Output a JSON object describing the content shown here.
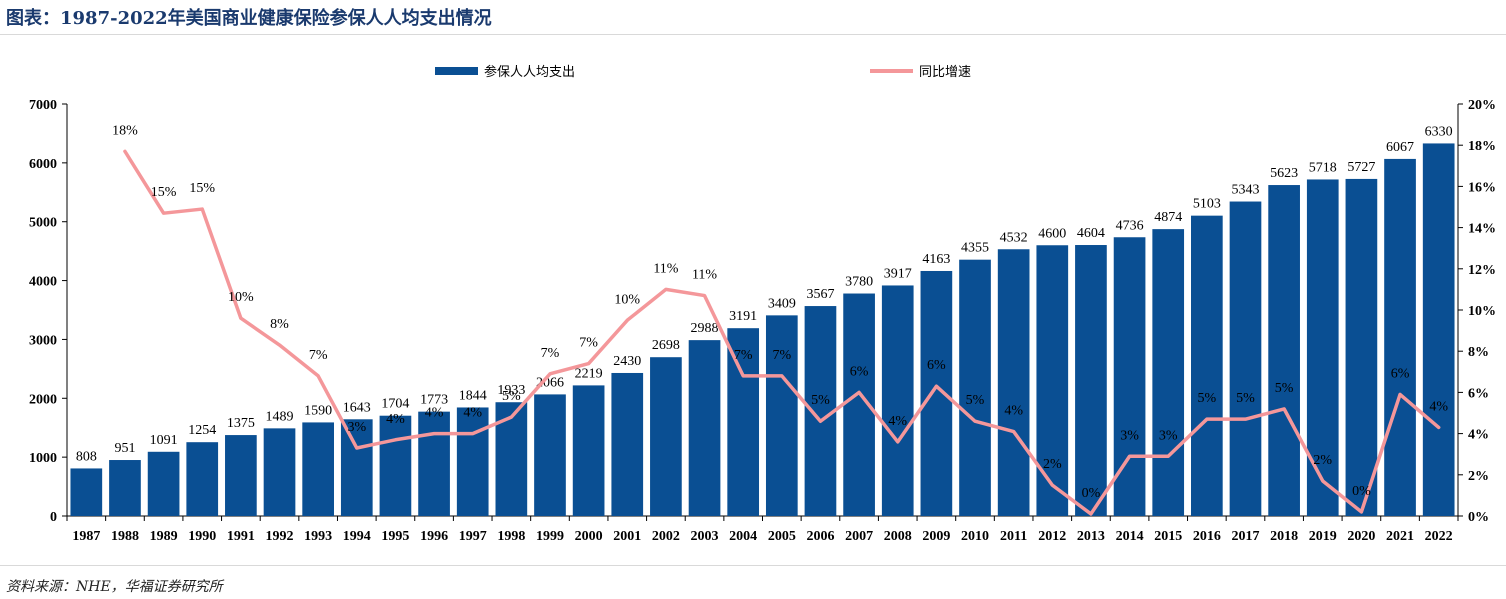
{
  "title": "图表：1987-2022年美国商业健康保险参保人人均支出情况",
  "source": "资料来源：NHE，华福证券研究所",
  "colors": {
    "bar": "#0a4f93",
    "line": "#f4979a",
    "title": "#1a3a6e"
  },
  "chart_data": {
    "type": "bar+line",
    "categories": [
      "1987",
      "1988",
      "1989",
      "1990",
      "1991",
      "1992",
      "1993",
      "1994",
      "1995",
      "1996",
      "1997",
      "1998",
      "1999",
      "2000",
      "2001",
      "2002",
      "2003",
      "2004",
      "2005",
      "2006",
      "2007",
      "2008",
      "2009",
      "2010",
      "2011",
      "2012",
      "2013",
      "2014",
      "2015",
      "2016",
      "2017",
      "2018",
      "2019",
      "2020",
      "2021",
      "2022"
    ],
    "series": [
      {
        "name": "参保人人均支出",
        "type": "bar",
        "axis": "left",
        "values": [
          808,
          951,
          1091,
          1254,
          1375,
          1489,
          1590,
          1643,
          1704,
          1773,
          1844,
          1933,
          2066,
          2219,
          2430,
          2698,
          2988,
          3191,
          3409,
          3567,
          3780,
          3917,
          4163,
          4355,
          4532,
          4600,
          4604,
          4736,
          4874,
          5103,
          5343,
          5623,
          5718,
          5727,
          6067,
          6330
        ],
        "labels": [
          "808",
          "951",
          "1091",
          "1254",
          "1375",
          "1489",
          "1590",
          "1643",
          "1704",
          "1773",
          "1844",
          "1933",
          "2066",
          "2219",
          "2430",
          "2698",
          "2988",
          "3191",
          "3409",
          "3567",
          "3780",
          "3917",
          "4163",
          "4355",
          "4532",
          "4600",
          "4604",
          "4736",
          "4874",
          "5103",
          "5343",
          "5623",
          "5718",
          "5727",
          "6067",
          "6330"
        ]
      },
      {
        "name": "同比增速",
        "type": "line",
        "axis": "right",
        "values": [
          null,
          17.7,
          14.7,
          14.9,
          9.6,
          8.3,
          6.8,
          3.3,
          3.7,
          4.0,
          4.0,
          4.8,
          6.9,
          7.4,
          9.5,
          11.0,
          10.7,
          6.8,
          6.8,
          4.6,
          6.0,
          3.6,
          6.3,
          4.6,
          4.1,
          1.5,
          0.1,
          2.9,
          2.9,
          4.7,
          4.7,
          5.2,
          1.7,
          0.2,
          5.9,
          4.3
        ],
        "labels": [
          "",
          "18%",
          "15%",
          "15%",
          "10%",
          "8%",
          "7%",
          "3%",
          "4%",
          "4%",
          "4%",
          "5%",
          "7%",
          "7%",
          "10%",
          "11%",
          "11%",
          "7%",
          "7%",
          "5%",
          "6%",
          "4%",
          "6%",
          "5%",
          "4%",
          "2%",
          "0%",
          "3%",
          "3%",
          "5%",
          "5%",
          "5%",
          "2%",
          "0%",
          "6%",
          "4%"
        ]
      }
    ],
    "y_left": {
      "min": 0,
      "max": 7000,
      "ticks": [
        "0",
        "1000",
        "2000",
        "3000",
        "4000",
        "5000",
        "6000",
        "7000"
      ]
    },
    "y_right": {
      "min": 0,
      "max": 20,
      "ticks": [
        "0%",
        "2%",
        "4%",
        "6%",
        "8%",
        "10%",
        "12%",
        "14%",
        "16%",
        "18%",
        "20%"
      ]
    },
    "legend": "top-center",
    "grid": false
  }
}
